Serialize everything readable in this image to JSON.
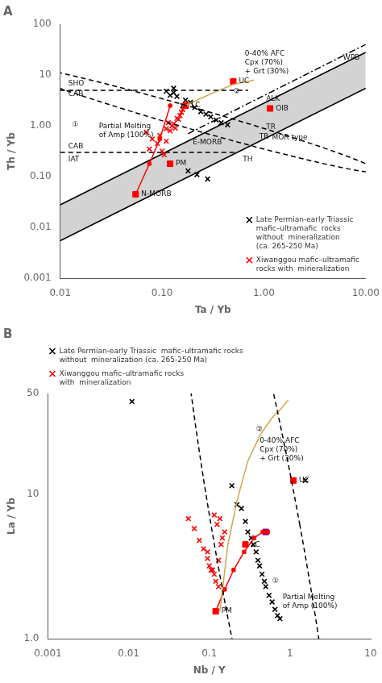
{
  "chart_data": [
    {
      "type": "scatter",
      "title": "A",
      "xlabel": "Ta / Yb",
      "ylabel": "Th / Yb",
      "log": true,
      "grid": false,
      "legend": "lower right",
      "xlim": [
        0.01,
        10.0
      ],
      "ylim": [
        0.001,
        100
      ],
      "xticks": [
        0.01,
        {
          "value": 0.1,
          "label": "0.10"
        },
        {
          "value": 1.0,
          "label": "1.00"
        },
        {
          "value": 10.0,
          "label": "10.00"
        }
      ],
      "yticks": [
        0.001,
        0.01,
        {
          "value": 0.1,
          "label": "0.10"
        },
        {
          "value": 1.0,
          "label": "1.00"
        },
        10,
        100
      ],
      "series": [
        {
          "type": "band",
          "x": [
            0.01,
            10.0
          ],
          "lower": [
            0.0055,
            5.5
          ],
          "upper": [
            0.028,
            28.0
          ],
          "color": "lightgrey"
        },
        {
          "type": "line",
          "x": [
            0.18,
            10.0
          ],
          "values": [
            0.7,
            40.0
          ],
          "color": "black",
          "line_style": "dashdot"
        },
        {
          "type": "line",
          "x": [
            0.01,
            0.7
          ],
          "values": [
            5.0,
            5.0
          ],
          "color": "black",
          "line_style": "dashed"
        },
        {
          "type": "line",
          "x": [
            0.01,
            0.55
          ],
          "values": [
            0.3,
            0.3
          ],
          "color": "black",
          "line_style": "dashed"
        },
        {
          "type": "ellipse",
          "cx": 0.2,
          "cy": 1.4,
          "w": 0.38,
          "h": 4.2,
          "angle": 60,
          "color": "black",
          "line_style": "dashed"
        },
        {
          "type": "line",
          "x": [
            0.17,
            0.22,
            0.32,
            0.5,
            0.8
          ],
          "values": [
            2.5,
            3.2,
            4.5,
            6.5,
            8.0
          ],
          "color": "#D4A44A",
          "line_style": "solid"
        },
        {
          "type": "line",
          "x": [
            0.055,
            0.075,
            0.095,
            0.12
          ],
          "values": [
            0.045,
            0.18,
            0.55,
            2.5
          ],
          "color": "red",
          "line_style": "solid",
          "marker": "dot"
        },
        {
          "type": "scatter",
          "x": [
            0.5,
            0.17,
            1.15,
            0.12,
            0.055
          ],
          "values": [
            7.5,
            2.5,
            2.2,
            0.18,
            0.045
          ],
          "point_labels": [
            "UC",
            "LC",
            "OIB",
            "PM",
            "N-MORB"
          ],
          "color": "red",
          "marker": "square"
        },
        {
          "type": "scatter",
          "name": "Late Permian-early Triassic\nmafic–ultramafic  rocks\nwithout  mineralization\n(ca. 265-250 Ma)",
          "x": [
            0.13,
            0.12,
            0.14,
            0.17,
            0.19,
            0.16,
            0.21,
            0.24,
            0.27,
            0.3,
            0.34,
            0.38,
            0.44,
            0.11,
            0.18,
            0.22,
            0.28,
            0.13
          ],
          "values": [
            4.5,
            4.0,
            3.8,
            3.2,
            2.9,
            2.5,
            2.3,
            1.9,
            1.7,
            1.5,
            1.3,
            1.15,
            1.05,
            4.8,
            0.13,
            0.11,
            0.09,
            5.5
          ],
          "color": "black",
          "marker": "x"
        },
        {
          "type": "scatter",
          "name": "Xiwanggou mafic–ultramafic\nrocks with  mineralization",
          "x": [
            0.07,
            0.08,
            0.09,
            0.075,
            0.1,
            0.105,
            0.11,
            0.12,
            0.13,
            0.14,
            0.15,
            0.155,
            0.16,
            0.125,
            0.095,
            0.135,
            0.115,
            0.145,
            0.11
          ],
          "values": [
            0.75,
            0.55,
            0.45,
            0.35,
            0.32,
            0.27,
            0.5,
            0.8,
            1.1,
            1.4,
            1.6,
            1.85,
            2.1,
            1.0,
            0.65,
            0.9,
            1.15,
            1.35,
            0.88
          ],
          "color": "red",
          "marker": "x"
        }
      ],
      "annotations": [
        {
          "text": "WPB",
          "x": 6.0,
          "y": 22.0
        },
        {
          "text": "SHO",
          "x": 0.012,
          "y": 6.8
        },
        {
          "text": "CAB",
          "x": 0.012,
          "y": 4.8
        },
        {
          "text": "CAB",
          "x": 0.012,
          "y": 0.4
        },
        {
          "text": "IAT",
          "x": 0.012,
          "y": 0.22
        },
        {
          "text": "E-MORB",
          "x": 0.2,
          "y": 0.48
        },
        {
          "text": "TH",
          "x": 0.62,
          "y": 0.22
        },
        {
          "text": "TR",
          "x": 0.9,
          "y": 0.6
        },
        {
          "text": "TR",
          "x": 1.05,
          "y": 0.95
        },
        {
          "text": "ALK",
          "x": 1.05,
          "y": 1.15
        },
        {
          "text": "MOR type",
          "x": 1.2,
          "y": 0.68
        },
        {
          "text": "①",
          "x": 0.013,
          "y": 1.05
        },
        {
          "text": "Partial Melting\nof Amp (100%)",
          "x": 0.024,
          "y": 0.8
        },
        {
          "text": "②",
          "x": 0.5,
          "y": 6.8
        },
        {
          "text": "0-40% AFC\nCpx (70%)\n+ Grt (30%)",
          "x": 0.65,
          "y": 5.5
        }
      ]
    },
    {
      "type": "scatter",
      "title": "B",
      "xlabel": "Nb / Y",
      "ylabel": "La / Yb",
      "log": true,
      "grid": false,
      "legend": "upper left",
      "xlim": [
        0.001,
        10.0
      ],
      "ylim": [
        1.0,
        50.0
      ],
      "xticks": [
        0.001,
        0.01,
        0.1,
        1,
        10
      ],
      "yticks": [
        {
          "value": 1,
          "label": "1.0"
        },
        10,
        50
      ],
      "series": [
        {
          "type": "ellipse",
          "cx": 0.42,
          "cy": 4.2,
          "w": 1.05,
          "h": 6.0,
          "angle": 18,
          "color": "black",
          "line_style": "dashed"
        },
        {
          "type": "line",
          "x": [
            0.135,
            0.17,
            0.22,
            0.3,
            0.43,
            0.6,
            0.8,
            0.95
          ],
          "values": [
            1.55,
            4.5,
            9.0,
            17.0,
            26.0,
            34.0,
            40.0,
            45.0
          ],
          "color": "#D4A44A",
          "line_style": "solid"
        },
        {
          "type": "line",
          "x": [
            0.12,
            0.155,
            0.2,
            0.27,
            0.36,
            0.46,
            0.53
          ],
          "values": [
            1.55,
            2.2,
            3.0,
            4.0,
            5.0,
            5.5,
            5.5
          ],
          "color": "red",
          "line_style": "solid",
          "marker": "square"
        },
        {
          "type": "scatter",
          "x": [
            0.12,
            0.28,
            1.1
          ],
          "values": [
            1.55,
            4.5,
            12.5
          ],
          "point_labels": [
            "PM",
            "LC",
            "UC"
          ],
          "color": "red",
          "marker": "square"
        },
        {
          "type": "scatter",
          "x": [
            0.5
          ],
          "values": [
            5.5
          ],
          "color": "#8B008B",
          "marker": "square"
        },
        {
          "type": "scatter",
          "name": "Late Permian-early Triassic  mafic–ultramafic rocks\nwithout  mineralization (ca. 265-250 Ma)",
          "x": [
            0.011,
            0.19,
            0.22,
            0.25,
            0.28,
            0.3,
            0.33,
            0.35,
            0.38,
            0.4,
            0.42,
            0.45,
            0.48,
            0.5,
            0.55,
            0.6,
            0.65,
            0.7,
            0.75,
            1.55
          ],
          "values": [
            44.0,
            11.5,
            8.5,
            8.0,
            6.5,
            5.5,
            5.0,
            4.5,
            4.0,
            3.5,
            3.2,
            2.8,
            2.5,
            2.3,
            2.0,
            1.8,
            1.6,
            1.45,
            1.38,
            12.5
          ],
          "color": "black",
          "marker": "x"
        },
        {
          "type": "scatter",
          "name": "Xiwanggou mafic–ultramafic rocks\nwith  mineralization",
          "x": [
            0.055,
            0.065,
            0.075,
            0.085,
            0.095,
            0.1,
            0.11,
            0.115,
            0.12,
            0.13,
            0.14,
            0.145,
            0.155,
            0.125,
            0.135,
            0.115,
            0.105,
            0.095,
            0.13
          ],
          "values": [
            6.8,
            5.8,
            4.8,
            4.2,
            3.6,
            3.2,
            3.0,
            2.8,
            2.5,
            2.3,
            4.5,
            5.0,
            5.5,
            6.2,
            6.8,
            7.2,
            3.0,
            4.0,
            3.5
          ],
          "color": "red",
          "marker": "x"
        }
      ],
      "annotations": [
        {
          "text": "②",
          "x": 0.38,
          "y": 28.0
        },
        {
          "text": "0-40% AFC\nCpx (70%)\n+ Grt (30%)",
          "x": 0.42,
          "y": 22.0
        },
        {
          "text": "①",
          "x": 0.6,
          "y": 2.5
        },
        {
          "text": "Partial Melting\nof Amp (100%)",
          "x": 0.81,
          "y": 1.8
        }
      ]
    }
  ]
}
